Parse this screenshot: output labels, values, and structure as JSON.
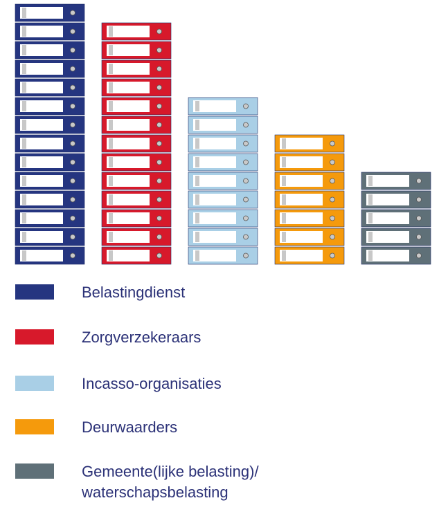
{
  "chart_data": {
    "type": "pictogram",
    "series": [
      {
        "name": "Belastingdienst",
        "color": "#253580",
        "values": [
          14
        ]
      },
      {
        "name": "Zorgverzekeraars",
        "color": "#d7192b",
        "values": [
          13
        ]
      },
      {
        "name": "Incasso-organisaties",
        "color": "#a9cfe6",
        "values": [
          9
        ]
      },
      {
        "name": "Deurwaarders",
        "color": "#f59a0c",
        "values": [
          7
        ]
      },
      {
        "name": "Gemeente(lijke belasting)/ waterschapsbelasting",
        "color": "#5f7078",
        "values": [
          5
        ]
      }
    ]
  }
}
